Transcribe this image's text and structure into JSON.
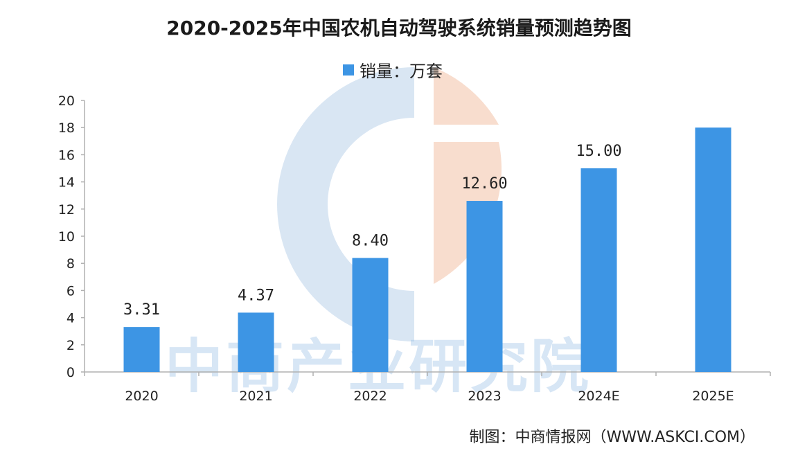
{
  "colors": {
    "bar": "#3d95e4",
    "axis": "#b0b0b0",
    "background": "#ffffff",
    "watermark_blue": "#b9d2ea",
    "watermark_orange": "#f3c7ae"
  },
  "watermark": {
    "text": "中商产业研究院"
  },
  "source": {
    "text": "制图：中商情报网（WWW.ASKCI.COM）"
  },
  "chart_data": {
    "type": "bar",
    "title": "2020-2025年中国农机自动驾驶系统销量预测趋势图",
    "legend": {
      "label": "销量：万套",
      "position": "top-center"
    },
    "categories": [
      "2020",
      "2021",
      "2022",
      "2023",
      "2024E",
      "2025E"
    ],
    "series": [
      {
        "name": "销量：万套",
        "values": [
          3.31,
          4.37,
          8.4,
          12.6,
          15.0,
          18.0
        ]
      }
    ],
    "data_labels": [
      "3.31",
      "4.37",
      "8.40",
      "12.60",
      "15.00",
      ""
    ],
    "x_tick_labels": [
      "2020",
      "2021",
      "2022",
      "2023",
      "2024E",
      "2025E"
    ],
    "y_ticks": [
      0,
      2,
      4,
      6,
      8,
      10,
      12,
      14,
      16,
      18,
      20
    ],
    "ylim": [
      0,
      20
    ],
    "grid": false,
    "xlabel": "",
    "ylabel": ""
  }
}
